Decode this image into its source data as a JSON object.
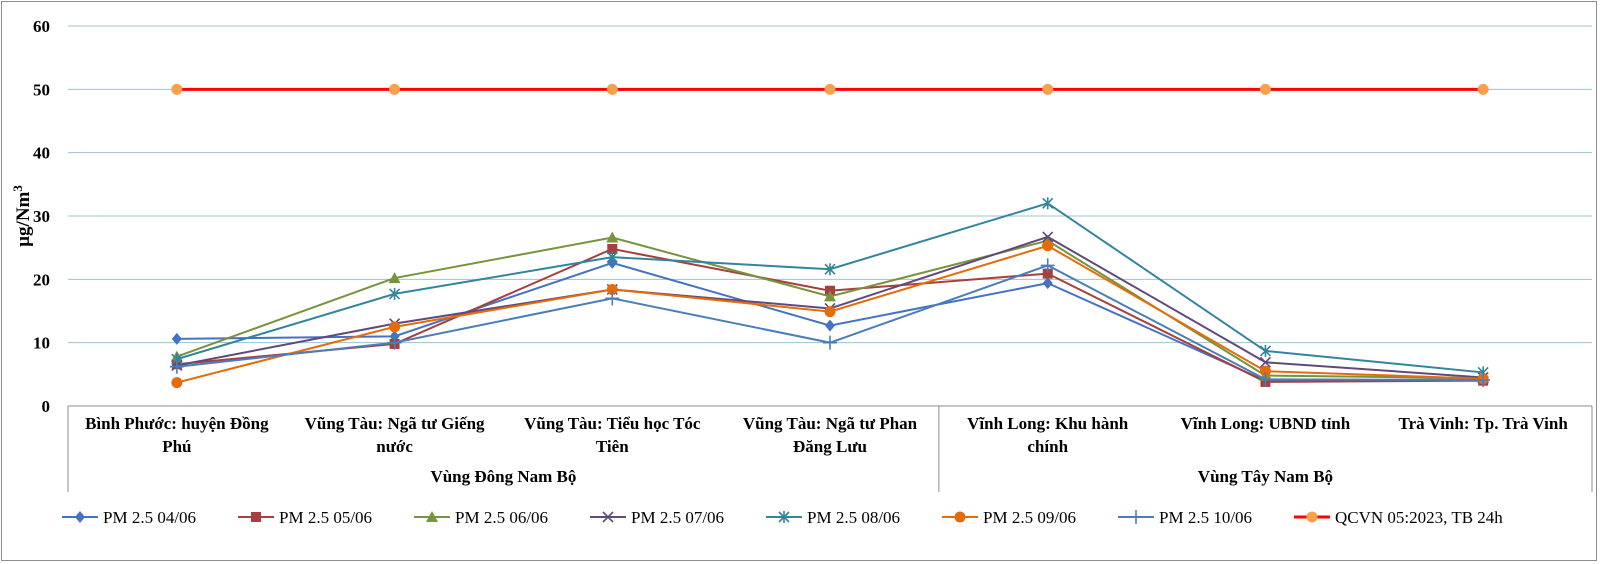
{
  "chart_data": {
    "type": "line",
    "ylabel": "µg/Nm3",
    "ylabel_main": "µg/Nm",
    "ylabel_sup": "3",
    "ylim": [
      0,
      60
    ],
    "yticks": [
      0,
      10,
      20,
      30,
      40,
      50,
      60
    ],
    "grid": true,
    "legend_position": "bottom",
    "categories": [
      [
        "Bình Phước: huyện Đồng",
        "Phú"
      ],
      [
        "Vũng Tàu: Ngã tư Giếng",
        "nước"
      ],
      [
        "Vũng Tàu: Tiểu học Tóc",
        "Tiên"
      ],
      [
        "Vũng Tàu: Ngã tư Phan",
        "Đăng Lưu"
      ],
      [
        "Vĩnh Long: Khu hành",
        "chính"
      ],
      [
        "Vĩnh Long: UBND tỉnh"
      ],
      [
        "Trà Vinh: Tp. Trà Vinh"
      ]
    ],
    "groups": [
      {
        "label": "Vùng Đông Nam Bộ",
        "start": 0,
        "end": 3
      },
      {
        "label": "Vùng Tây Nam Bộ",
        "start": 4,
        "end": 6
      }
    ],
    "series": [
      {
        "name": "PM 2.5 04/06",
        "color": "#4472c4",
        "marker": "diamond",
        "values": [
          10.6,
          11.0,
          22.6,
          12.7,
          19.4,
          4.0,
          4.2
        ]
      },
      {
        "name": "PM 2.5 05/06",
        "color": "#a5403e",
        "marker": "square",
        "values": [
          6.6,
          9.8,
          24.8,
          18.2,
          20.9,
          3.8,
          4.0
        ]
      },
      {
        "name": "PM 2.5 06/06",
        "color": "#77933c",
        "marker": "triangle",
        "values": [
          7.8,
          20.2,
          26.6,
          17.3,
          26.1,
          4.8,
          4.4
        ]
      },
      {
        "name": "PM 2.5 07/06",
        "color": "#604a7b",
        "marker": "x",
        "values": [
          6.4,
          13.0,
          18.4,
          15.4,
          26.7,
          6.9,
          4.5
        ]
      },
      {
        "name": "PM 2.5 08/06",
        "color": "#31859c",
        "marker": "star",
        "values": [
          7.4,
          17.7,
          23.5,
          21.6,
          32.0,
          8.7,
          5.3
        ]
      },
      {
        "name": "PM 2.5 09/06",
        "color": "#e46c0a",
        "marker": "circle",
        "values": [
          3.7,
          12.5,
          18.4,
          14.9,
          25.3,
          5.5,
          4.3
        ]
      },
      {
        "name": "PM 2.5 10/06",
        "color": "#4a7ebb",
        "marker": "plus",
        "values": [
          6.2,
          10.0,
          17.0,
          10.0,
          22.2,
          4.2,
          4.1
        ]
      },
      {
        "name": "QCVN 05:2023, TB 24h",
        "color": "#ff0000",
        "marker": "circle",
        "marker_color": "#f9a04a",
        "values": [
          50,
          50,
          50,
          50,
          50,
          50,
          50
        ]
      }
    ]
  }
}
